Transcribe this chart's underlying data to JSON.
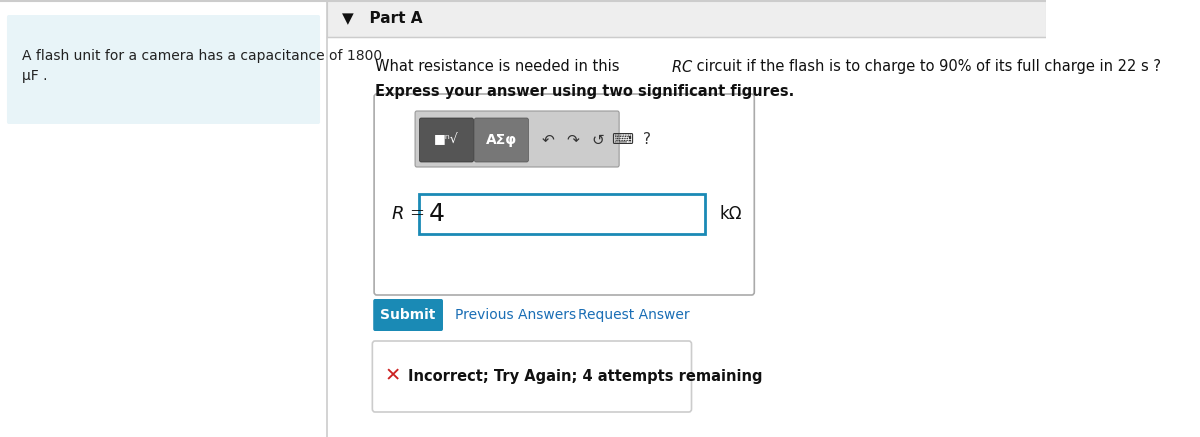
{
  "bg_color": "#ffffff",
  "left_panel_bg": "#e8f4f8",
  "left_panel_text_line1": "A flash unit for a camera has a capacitance of 1800",
  "left_panel_text_line2": "μF .",
  "part_a_label": "▼   Part A",
  "bold_instruction": "Express your answer using two significant figures.",
  "input_value": "4",
  "input_unit": "kΩ",
  "submit_btn_text": "Submit",
  "submit_btn_color": "#1a8ab5",
  "submit_btn_text_color": "#ffffff",
  "prev_answers_text": "Previous Answers",
  "request_answer_text": "Request Answer",
  "link_color": "#1a6eb5",
  "incorrect_text": "Incorrect; Try Again; 4 attempts remaining",
  "incorrect_icon": "✕",
  "incorrect_icon_color": "#cc2222",
  "top_border_color": "#cccccc",
  "input_border_color": "#1a8ab5",
  "outer_box_border": "#aaaaaa",
  "incorrect_box_border": "#cccccc",
  "divider_color": "#cccccc",
  "part_a_bg": "#eeeeee",
  "toolbar_bg": "#cccccc",
  "btn1_bg": "#555555",
  "btn2_bg": "#777777"
}
